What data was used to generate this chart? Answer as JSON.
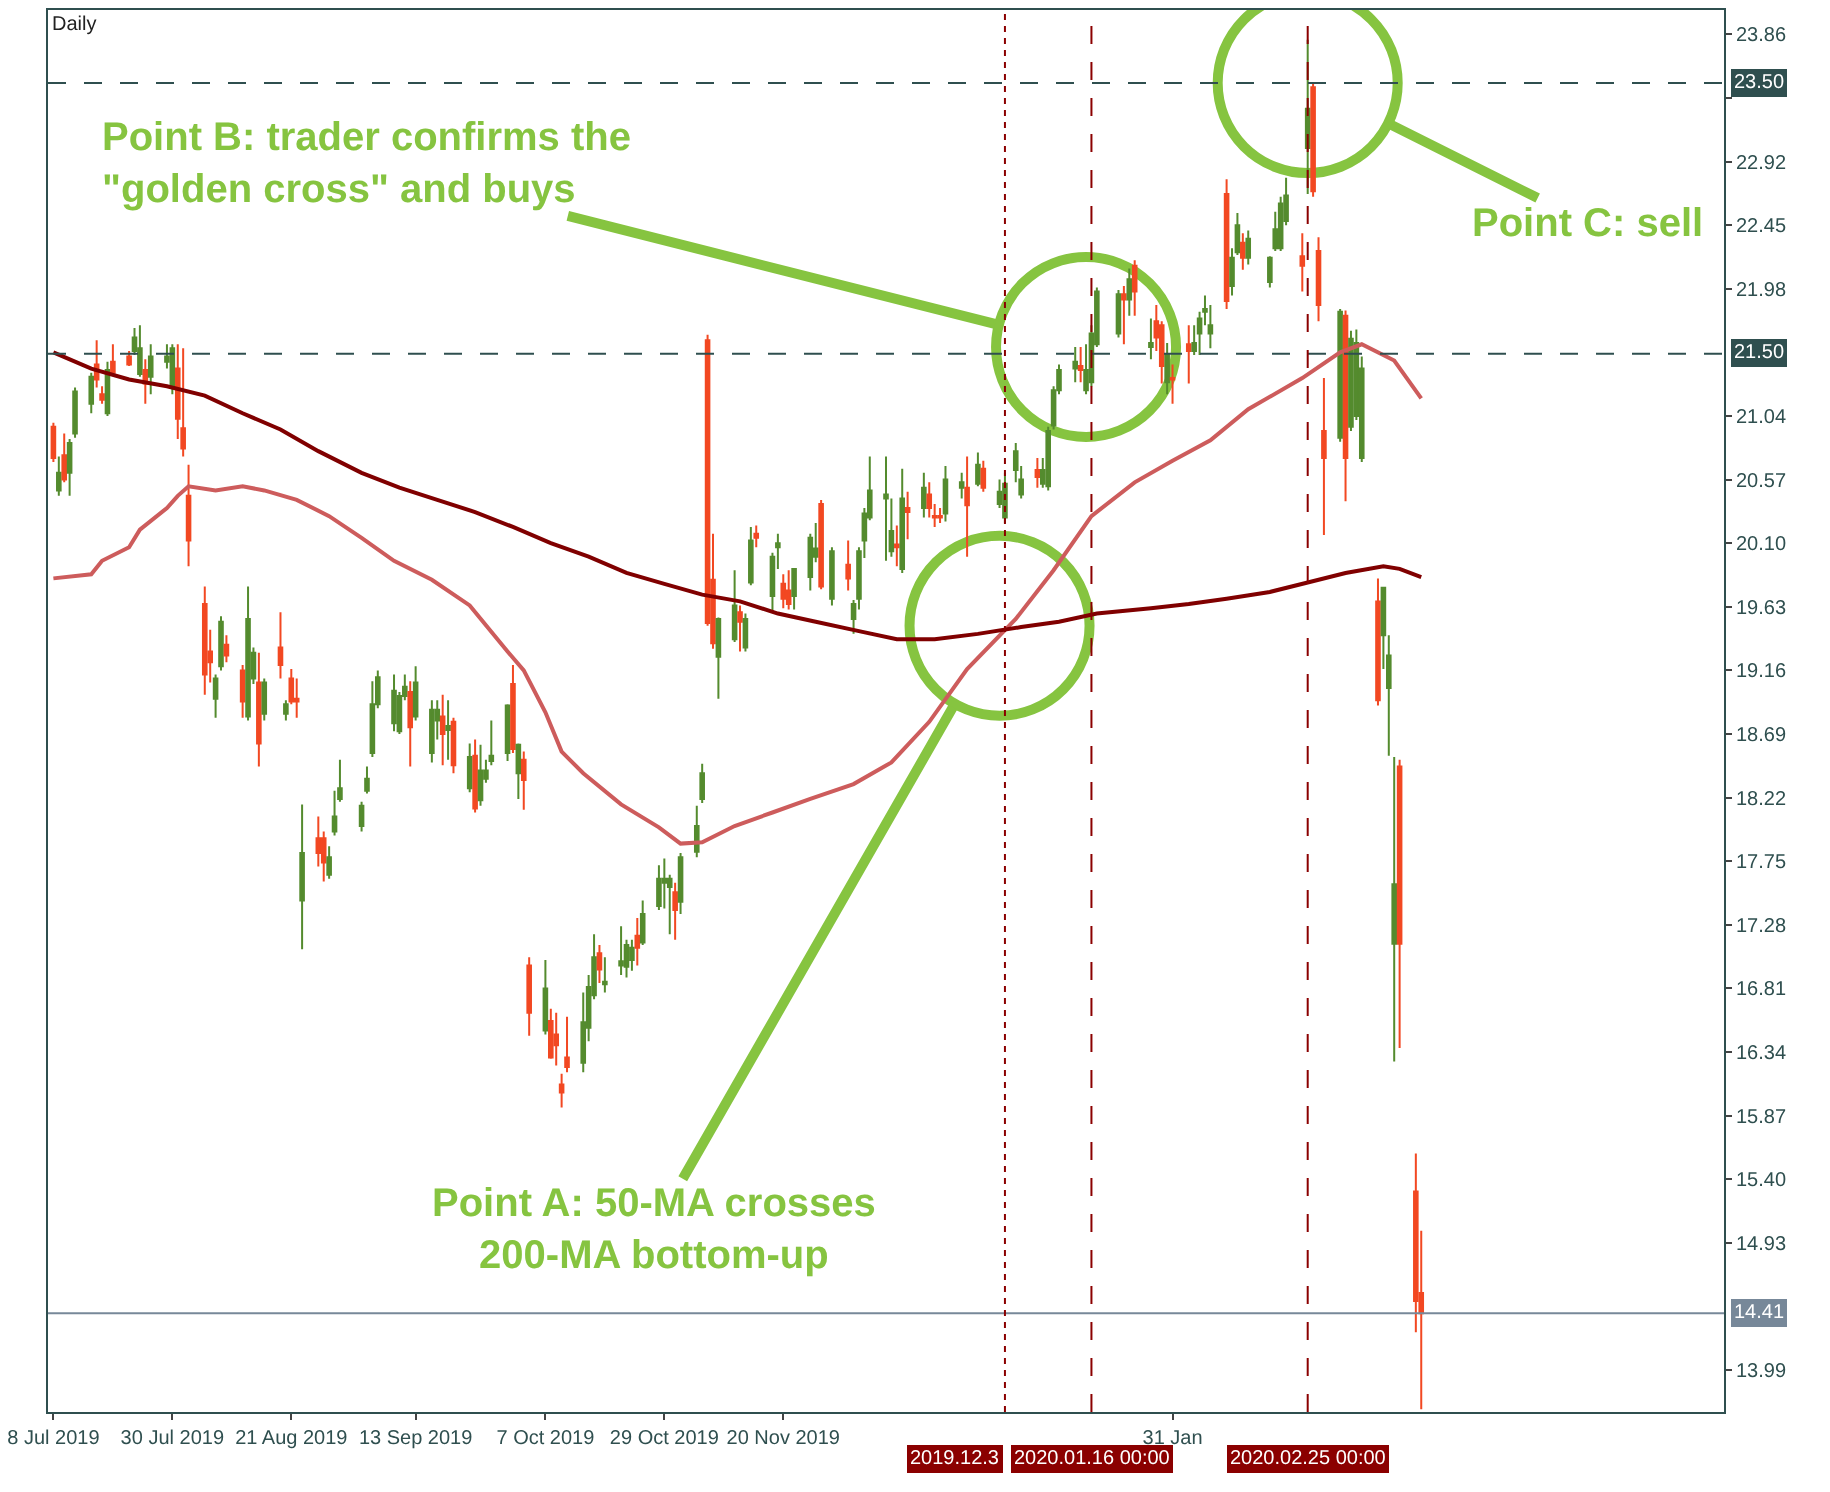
{
  "chart_data": {
    "type": "candlestick",
    "title": "Daily",
    "x": [
      "2019-07-08",
      "2019-07-09",
      "2019-07-10",
      "2019-07-11",
      "2019-07-12",
      "2019-07-15",
      "2019-07-16",
      "2019-07-17",
      "2019-07-18",
      "2019-07-19",
      "2019-07-22",
      "2019-07-23",
      "2019-07-24",
      "2019-07-25",
      "2019-07-26",
      "2019-07-29",
      "2019-07-30",
      "2019-07-31",
      "2019-08-01",
      "2019-08-02",
      "2019-08-05",
      "2019-08-06",
      "2019-08-07",
      "2019-08-08",
      "2019-08-09",
      "2019-08-12",
      "2019-08-13",
      "2019-08-14",
      "2019-08-15",
      "2019-08-16",
      "2019-08-19",
      "2019-08-20",
      "2019-08-21",
      "2019-08-22",
      "2019-08-23",
      "2019-08-26",
      "2019-08-27",
      "2019-08-28",
      "2019-08-29",
      "2019-08-30",
      "2019-09-03",
      "2019-09-04",
      "2019-09-05",
      "2019-09-06",
      "2019-09-09",
      "2019-09-10",
      "2019-09-11",
      "2019-09-12",
      "2019-09-13",
      "2019-09-16",
      "2019-09-17",
      "2019-09-18",
      "2019-09-19",
      "2019-09-20",
      "2019-09-23",
      "2019-09-24",
      "2019-09-25",
      "2019-09-26",
      "2019-09-27",
      "2019-09-30",
      "2019-10-01",
      "2019-10-02",
      "2019-10-03",
      "2019-10-04",
      "2019-10-07",
      "2019-10-08",
      "2019-10-09",
      "2019-10-10",
      "2019-10-11",
      "2019-10-14",
      "2019-10-15",
      "2019-10-16",
      "2019-10-17",
      "2019-10-18",
      "2019-10-21",
      "2019-10-22",
      "2019-10-23",
      "2019-10-24",
      "2019-10-25",
      "2019-10-28",
      "2019-10-29",
      "2019-10-30",
      "2019-10-31",
      "2019-11-01",
      "2019-11-04",
      "2019-11-05",
      "2019-11-06",
      "2019-11-07",
      "2019-11-08",
      "2019-11-11",
      "2019-11-12",
      "2019-11-13",
      "2019-11-14",
      "2019-11-15",
      "2019-11-18",
      "2019-11-19",
      "2019-11-20",
      "2019-11-21",
      "2019-11-22",
      "2019-11-25",
      "2019-11-26",
      "2019-11-27",
      "2019-11-29",
      "2019-12-02",
      "2019-12-03",
      "2019-12-04",
      "2019-12-05",
      "2019-12-06",
      "2019-12-09",
      "2019-12-10",
      "2019-12-11",
      "2019-12-12",
      "2019-12-13",
      "2019-12-16",
      "2019-12-17",
      "2019-12-18",
      "2019-12-19",
      "2019-12-20",
      "2019-12-23",
      "2019-12-24",
      "2019-12-26",
      "2019-12-27",
      "2019-12-30",
      "2019-12-31",
      "2020-01-02",
      "2020-01-03",
      "2020-01-06",
      "2020-01-07",
      "2020-01-08",
      "2020-01-09",
      "2020-01-10",
      "2020-01-13",
      "2020-01-14",
      "2020-01-15",
      "2020-01-16",
      "2020-01-17",
      "2020-01-21",
      "2020-01-22",
      "2020-01-23",
      "2020-01-24",
      "2020-01-27",
      "2020-01-28",
      "2020-01-29",
      "2020-01-30",
      "2020-01-31",
      "2020-02-03",
      "2020-02-04",
      "2020-02-05",
      "2020-02-06",
      "2020-02-07",
      "2020-02-10",
      "2020-02-11",
      "2020-02-12",
      "2020-02-13",
      "2020-02-14",
      "2020-02-18",
      "2020-02-19",
      "2020-02-20",
      "2020-02-21",
      "2020-02-24",
      "2020-02-25",
      "2020-02-26",
      "2020-02-27",
      "2020-02-28",
      "2020-03-02",
      "2020-03-03",
      "2020-03-04",
      "2020-03-05",
      "2020-03-06",
      "2020-03-09",
      "2020-03-10",
      "2020-03-11",
      "2020-03-12",
      "2020-03-13",
      "2020-03-16",
      "2020-03-17"
    ],
    "ohlc": [
      [
        20.96,
        20.99,
        20.7,
        20.73
      ],
      [
        20.49,
        20.74,
        20.45,
        20.62
      ],
      [
        20.75,
        20.91,
        20.55,
        20.57
      ],
      [
        20.62,
        20.87,
        20.45,
        20.84
      ],
      [
        20.91,
        21.25,
        20.88,
        21.22
      ],
      [
        21.13,
        21.36,
        21.06,
        21.33
      ],
      [
        21.42,
        21.6,
        21.25,
        21.31
      ],
      [
        21.2,
        21.26,
        21.13,
        21.16
      ],
      [
        21.06,
        21.44,
        21.04,
        21.38
      ],
      [
        21.44,
        21.57,
        21.35,
        21.36
      ],
      [
        21.48,
        21.52,
        21.41,
        21.42
      ],
      [
        21.52,
        21.69,
        21.49,
        21.62
      ],
      [
        21.35,
        21.71,
        21.33,
        21.54
      ],
      [
        21.38,
        21.46,
        21.13,
        21.28
      ],
      [
        21.33,
        21.57,
        21.2,
        21.48
      ],
      [
        21.44,
        21.57,
        21.39,
        21.48
      ],
      [
        21.25,
        21.57,
        21.2,
        21.54
      ],
      [
        21.39,
        21.57,
        20.87,
        21.02
      ],
      [
        20.95,
        21.54,
        20.74,
        20.8
      ],
      [
        20.45,
        20.68,
        19.93,
        20.12
      ],
      [
        19.65,
        19.78,
        18.98,
        19.13
      ],
      [
        19.3,
        19.46,
        19.07,
        19.22
      ],
      [
        18.95,
        19.13,
        18.81,
        19.1
      ],
      [
        19.19,
        19.56,
        19.16,
        19.52
      ],
      [
        19.35,
        19.42,
        19.22,
        19.27
      ],
      [
        19.16,
        19.2,
        18.81,
        18.93
      ],
      [
        18.82,
        19.78,
        18.79,
        19.54
      ],
      [
        19.1,
        19.33,
        19.06,
        19.29
      ],
      [
        19.07,
        19.29,
        18.45,
        18.62
      ],
      [
        18.84,
        19.1,
        18.79,
        19.07
      ],
      [
        19.33,
        19.59,
        19.1,
        19.2
      ],
      [
        18.84,
        18.94,
        18.79,
        18.91
      ],
      [
        19.1,
        19.17,
        18.91,
        18.93
      ],
      [
        18.95,
        19.1,
        18.81,
        18.93
      ],
      [
        17.46,
        18.17,
        17.1,
        17.81
      ],
      [
        17.92,
        18.08,
        17.71,
        17.81
      ],
      [
        17.92,
        17.97,
        17.6,
        17.74
      ],
      [
        17.65,
        17.86,
        17.62,
        17.78
      ],
      [
        17.97,
        18.27,
        17.94,
        18.08
      ],
      [
        18.21,
        18.5,
        18.19,
        18.29
      ],
      [
        18.01,
        18.19,
        17.97,
        18.16
      ],
      [
        18.27,
        18.45,
        18.25,
        18.36
      ],
      [
        18.55,
        19.08,
        18.52,
        18.91
      ],
      [
        18.91,
        19.16,
        18.88,
        19.11
      ],
      [
        18.77,
        19.13,
        18.71,
        19.01
      ],
      [
        18.71,
        19.0,
        18.69,
        18.97
      ],
      [
        18.97,
        19.13,
        18.94,
        19.04
      ],
      [
        19.0,
        19.08,
        18.45,
        18.74
      ],
      [
        18.82,
        19.19,
        18.79,
        19.07
      ],
      [
        18.55,
        18.94,
        18.48,
        18.87
      ],
      [
        18.79,
        18.94,
        18.65,
        18.87
      ],
      [
        18.82,
        18.98,
        18.46,
        18.69
      ],
      [
        18.72,
        18.94,
        18.5,
        18.75
      ],
      [
        18.78,
        18.81,
        18.4,
        18.46
      ],
      [
        18.29,
        18.62,
        18.26,
        18.52
      ],
      [
        18.53,
        18.65,
        18.11,
        18.14
      ],
      [
        18.2,
        18.61,
        18.16,
        18.42
      ],
      [
        18.36,
        18.5,
        18.33,
        18.42
      ],
      [
        18.49,
        18.79,
        18.46,
        18.53
      ],
      [
        18.55,
        18.91,
        18.49,
        18.9
      ],
      [
        19.06,
        19.2,
        18.55,
        18.58
      ],
      [
        18.4,
        18.62,
        18.21,
        18.61
      ],
      [
        18.5,
        18.56,
        18.13,
        18.35
      ],
      [
        16.98,
        17.04,
        16.46,
        16.63
      ],
      [
        16.5,
        17.02,
        16.47,
        16.81
      ],
      [
        16.57,
        16.66,
        16.29,
        16.3
      ],
      [
        16.47,
        16.63,
        16.24,
        16.39
      ],
      [
        16.1,
        16.18,
        15.93,
        16.04
      ],
      [
        16.3,
        16.6,
        16.19,
        16.23
      ],
      [
        16.26,
        16.78,
        16.19,
        16.56
      ],
      [
        16.52,
        16.91,
        16.42,
        16.82
      ],
      [
        16.76,
        17.21,
        16.73,
        17.04
      ],
      [
        17.07,
        17.13,
        16.85,
        16.95
      ],
      [
        16.84,
        17.04,
        16.78,
        16.86
      ],
      [
        16.98,
        17.27,
        16.91,
        17.01
      ],
      [
        16.97,
        17.17,
        16.89,
        17.13
      ],
      [
        17.02,
        17.17,
        16.94,
        17.11
      ],
      [
        17.2,
        17.33,
        16.98,
        17.11
      ],
      [
        17.15,
        17.46,
        17.13,
        17.36
      ],
      [
        17.42,
        17.72,
        17.39,
        17.62
      ],
      [
        17.59,
        17.77,
        17.4,
        17.62
      ],
      [
        17.56,
        17.65,
        17.21,
        17.62
      ],
      [
        17.52,
        17.59,
        17.17,
        17.39
      ],
      [
        17.45,
        17.81,
        17.36,
        17.78
      ],
      [
        17.82,
        18.16,
        17.78,
        18.01
      ],
      [
        18.21,
        18.47,
        18.18,
        18.4
      ],
      [
        21.6,
        21.64,
        19.49,
        19.51
      ],
      [
        19.83,
        20.17,
        19.32,
        19.36
      ],
      [
        19.26,
        19.55,
        18.95,
        19.54
      ],
      [
        19.39,
        19.9,
        19.37,
        19.64
      ],
      [
        19.59,
        19.64,
        19.3,
        19.52
      ],
      [
        19.33,
        19.58,
        19.3,
        19.54
      ],
      [
        19.81,
        20.22,
        19.79,
        20.12
      ],
      [
        20.17,
        20.23,
        20.07,
        20.14
      ],
      [
        19.71,
        20.03,
        19.59,
        20.0
      ],
      [
        20.07,
        20.17,
        19.91,
        20.1
      ],
      [
        19.8,
        19.87,
        19.62,
        19.69
      ],
      [
        19.75,
        19.9,
        19.61,
        19.65
      ],
      [
        19.71,
        19.91,
        19.61,
        19.91
      ],
      [
        19.85,
        20.17,
        19.75,
        20.14
      ],
      [
        20.0,
        20.25,
        19.96,
        20.06
      ],
      [
        20.39,
        20.42,
        19.76,
        19.78
      ],
      [
        19.69,
        20.07,
        19.64,
        20.04
      ],
      [
        19.94,
        20.12,
        19.75,
        19.84
      ],
      [
        19.54,
        19.68,
        19.43,
        19.65
      ],
      [
        19.69,
        20.07,
        19.61,
        20.04
      ],
      [
        20.12,
        20.36,
        19.99,
        20.32
      ],
      [
        20.29,
        20.74,
        20.27,
        20.49
      ],
      [
        20.43,
        20.74,
        19.97,
        20.46
      ],
      [
        20.04,
        20.43,
        20.0,
        20.19
      ],
      [
        20.09,
        20.23,
        19.93,
        20.07
      ],
      [
        19.91,
        20.65,
        19.88,
        20.43
      ],
      [
        20.36,
        20.48,
        20.13,
        20.33
      ],
      [
        20.36,
        20.62,
        20.29,
        20.51
      ],
      [
        20.46,
        20.55,
        20.29,
        20.36
      ],
      [
        20.3,
        20.39,
        20.22,
        20.29
      ],
      [
        20.3,
        20.36,
        20.25,
        20.29
      ],
      [
        20.32,
        20.67,
        20.26,
        20.57
      ],
      [
        20.51,
        20.62,
        20.43,
        20.55
      ],
      [
        20.51,
        20.74,
        20.0,
        20.38
      ],
      [
        20.54,
        20.77,
        20.52,
        20.68
      ],
      [
        20.65,
        20.71,
        20.48,
        20.51
      ],
      [
        20.39,
        20.57,
        20.36,
        20.48
      ],
      [
        20.29,
        20.62,
        20.25,
        20.54
      ],
      [
        20.64,
        20.84,
        20.55,
        20.78
      ],
      [
        20.46,
        20.67,
        20.43,
        20.57
      ],
      [
        20.64,
        20.73,
        20.51,
        20.59
      ],
      [
        20.54,
        20.73,
        20.51,
        20.64
      ],
      [
        20.52,
        20.96,
        20.49,
        20.93
      ],
      [
        20.97,
        21.26,
        20.94,
        21.23
      ],
      [
        21.23,
        21.42,
        21.2,
        21.38
      ],
      [
        21.39,
        21.55,
        21.29,
        21.44
      ],
      [
        21.41,
        21.55,
        21.29,
        21.38
      ],
      [
        21.23,
        21.57,
        21.2,
        21.38
      ],
      [
        21.29,
        21.71,
        21.26,
        21.65
      ],
      [
        21.57,
        21.99,
        21.55,
        21.96
      ],
      [
        21.65,
        21.97,
        21.62,
        21.94
      ],
      [
        21.94,
        22.0,
        21.57,
        21.9
      ],
      [
        21.9,
        22.13,
        21.78,
        22.05
      ],
      [
        22.15,
        22.19,
        21.78,
        21.96
      ],
      [
        21.55,
        21.76,
        21.46,
        21.58
      ],
      [
        21.74,
        21.86,
        21.52,
        21.62
      ],
      [
        21.71,
        21.74,
        21.28,
        21.41
      ],
      [
        21.29,
        21.58,
        21.2,
        21.49
      ],
      [
        21.32,
        21.42,
        21.13,
        21.31
      ],
      [
        21.57,
        21.71,
        21.28,
        21.52
      ],
      [
        21.52,
        21.71,
        21.49,
        21.58
      ],
      [
        21.65,
        21.81,
        21.49,
        21.76
      ],
      [
        21.81,
        21.93,
        21.71,
        21.83
      ],
      [
        21.65,
        21.86,
        21.54,
        21.71
      ],
      [
        22.68,
        22.79,
        21.83,
        21.89
      ],
      [
        22.0,
        22.28,
        21.93,
        22.21
      ],
      [
        22.25,
        22.54,
        22.23,
        22.45
      ],
      [
        22.32,
        22.39,
        22.12,
        22.21
      ],
      [
        22.21,
        22.41,
        22.16,
        22.35
      ],
      [
        22.03,
        22.22,
        21.99,
        22.21
      ],
      [
        22.28,
        22.55,
        22.26,
        22.42
      ],
      [
        22.28,
        22.66,
        22.26,
        22.61
      ],
      [
        22.48,
        22.8,
        22.45,
        22.67
      ],
      [
        22.22,
        22.39,
        21.96,
        22.15
      ],
      [
        23.02,
        23.82,
        22.68,
        23.31
      ],
      [
        23.47,
        23.5,
        22.66,
        22.7
      ],
      [
        22.26,
        22.36,
        21.74,
        21.86
      ],
      [
        20.93,
        21.32,
        20.16,
        20.73
      ],
      [
        20.88,
        21.83,
        20.85,
        21.81
      ],
      [
        21.78,
        21.82,
        20.41,
        20.73
      ],
      [
        20.96,
        21.67,
        20.93,
        21.61
      ],
      [
        21.04,
        21.68,
        21.01,
        21.58
      ],
      [
        20.73,
        21.48,
        20.7,
        21.39
      ],
      [
        19.67,
        19.84,
        18.9,
        18.94
      ],
      [
        19.42,
        19.77,
        19.17,
        19.77
      ],
      [
        19.03,
        19.42,
        18.53,
        19.27
      ],
      [
        17.14,
        18.52,
        16.27,
        17.58
      ],
      [
        18.45,
        18.5,
        16.37,
        17.14
      ],
      [
        15.31,
        15.59,
        14.27,
        14.5
      ],
      [
        14.56,
        15.02,
        13.7,
        14.41
      ]
    ],
    "series": [
      {
        "type": "line",
        "color": "#cd5c5c",
        "x": [
          "2019-07-08",
          "2019-07-15",
          "2019-07-17",
          "2019-07-22",
          "2019-07-24",
          "2019-07-29",
          "2019-07-31",
          "2019-08-02",
          "2019-08-07",
          "2019-08-12",
          "2019-08-16",
          "2019-08-22",
          "2019-08-28",
          "2019-09-03",
          "2019-09-09",
          "2019-09-16",
          "2019-09-23",
          "2019-09-30",
          "2019-10-03",
          "2019-10-07",
          "2019-10-10",
          "2019-10-14",
          "2019-10-21",
          "2019-10-28",
          "2019-11-01",
          "2019-11-05",
          "2019-11-11",
          "2019-11-18",
          "2019-11-25",
          "2019-12-03",
          "2019-12-10",
          "2019-12-17",
          "2019-12-24",
          "2020-01-02",
          "2020-01-09",
          "2020-01-16",
          "2020-01-24",
          "2020-01-31",
          "2020-02-07",
          "2020-02-14",
          "2020-02-24",
          "2020-03-02",
          "2020-03-06",
          "2020-03-12",
          "2020-03-17"
        ],
        "values": [
          19.84,
          19.87,
          19.97,
          20.07,
          20.2,
          20.36,
          20.45,
          20.52,
          20.49,
          20.52,
          20.49,
          20.42,
          20.3,
          20.14,
          19.97,
          19.83,
          19.64,
          19.3,
          19.16,
          18.85,
          18.56,
          18.4,
          18.17,
          18.0,
          17.88,
          17.89,
          18.01,
          18.11,
          18.21,
          18.32,
          18.48,
          18.78,
          19.17,
          19.54,
          19.9,
          20.3,
          20.55,
          20.71,
          20.86,
          21.09,
          21.32,
          21.51,
          21.57,
          21.45,
          21.17
        ]
      },
      {
        "type": "line",
        "color": "#800000",
        "x": [
          "2019-07-08",
          "2019-07-15",
          "2019-07-22",
          "2019-07-29",
          "2019-08-05",
          "2019-08-12",
          "2019-08-19",
          "2019-08-26",
          "2019-09-03",
          "2019-09-10",
          "2019-09-17",
          "2019-09-24",
          "2019-10-01",
          "2019-10-08",
          "2019-10-15",
          "2019-10-22",
          "2019-10-29",
          "2019-11-05",
          "2019-11-12",
          "2019-11-19",
          "2019-11-26",
          "2019-12-04",
          "2019-12-11",
          "2019-12-18",
          "2019-12-26",
          "2020-01-03",
          "2020-01-10",
          "2020-01-17",
          "2020-01-27",
          "2020-02-03",
          "2020-02-10",
          "2020-02-18",
          "2020-02-25",
          "2020-03-03",
          "2020-03-10",
          "2020-03-13",
          "2020-03-17"
        ],
        "values": [
          21.51,
          21.39,
          21.31,
          21.26,
          21.19,
          21.06,
          20.94,
          20.78,
          20.62,
          20.51,
          20.42,
          20.33,
          20.22,
          20.1,
          20.0,
          19.88,
          19.8,
          19.72,
          19.67,
          19.58,
          19.52,
          19.45,
          19.39,
          19.39,
          19.43,
          19.48,
          19.52,
          19.58,
          19.62,
          19.65,
          19.69,
          19.74,
          19.81,
          19.88,
          19.93,
          19.91,
          19.85
        ]
      }
    ],
    "xlim": [
      "2019-07-07",
      "2020-05-12"
    ],
    "xticks": [
      {
        "value": "2019-07-08",
        "label": "8 Jul 2019"
      },
      {
        "value": "2019-07-30",
        "label": "30 Jul 2019"
      },
      {
        "value": "2019-08-21",
        "label": "21 Aug 2019"
      },
      {
        "value": "2019-09-13",
        "label": "13 Sep 2019"
      },
      {
        "value": "2019-10-07",
        "label": "7 Oct 2019"
      },
      {
        "value": "2019-10-29",
        "label": "29 Oct 2019"
      },
      {
        "value": "2019-11-20",
        "label": "20 Nov 2019"
      },
      {
        "value": "2020-01-31",
        "label": "31 Jan"
      }
    ],
    "ylim": [
      13.68,
      24.04
    ],
    "yticks": [
      13.99,
      14.93,
      {
        "value": 15.4,
        "label": "15.40"
      },
      15.87,
      16.34,
      16.81,
      17.28,
      17.75,
      18.22,
      18.69,
      19.16,
      19.63,
      {
        "value": 20.1,
        "label": "20.10"
      },
      20.57,
      21.04,
      21.98,
      22.45,
      22.92,
      {
        "value": 23.39,
        "label": null
      },
      23.86
    ],
    "ref_lines": [
      {
        "axis": "y",
        "value": 23.5,
        "label": "23.50",
        "color": "#2f4f4f",
        "line_style": "dashed"
      },
      {
        "axis": "y",
        "value": 21.5,
        "label": "21.50",
        "color": "#2f4f4f",
        "line_style": "dashed"
      },
      {
        "axis": "y",
        "value": 14.41,
        "label": "14.41",
        "color": "#778899",
        "line_style": "solid"
      },
      {
        "axis": "x",
        "value": "2019-12-31",
        "label": "2019.12.3",
        "color": "#8b0000",
        "line_style": "dotted"
      },
      {
        "axis": "x",
        "value": "2020-01-16",
        "label": "2020.01.16 00:00",
        "color": "#8b0000",
        "line_style": "dashed"
      },
      {
        "axis": "x",
        "value": "2020-02-25",
        "label": "2020.02.25 00:00",
        "color": "#8b0000",
        "line_style": "dashed"
      }
    ],
    "annotations": [
      {
        "text": "Point A: 50-MA crosses\n200-MA bottom-up",
        "x": "2019-12-30",
        "y": 19.49
      },
      {
        "text": "Point B: trader confirms the\n\"golden cross\" and buys",
        "x": "2020-01-15",
        "y": 21.55
      },
      {
        "text": "Point C: sell",
        "x": "2020-02-25",
        "y": 23.5
      }
    ],
    "grid": false
  }
}
